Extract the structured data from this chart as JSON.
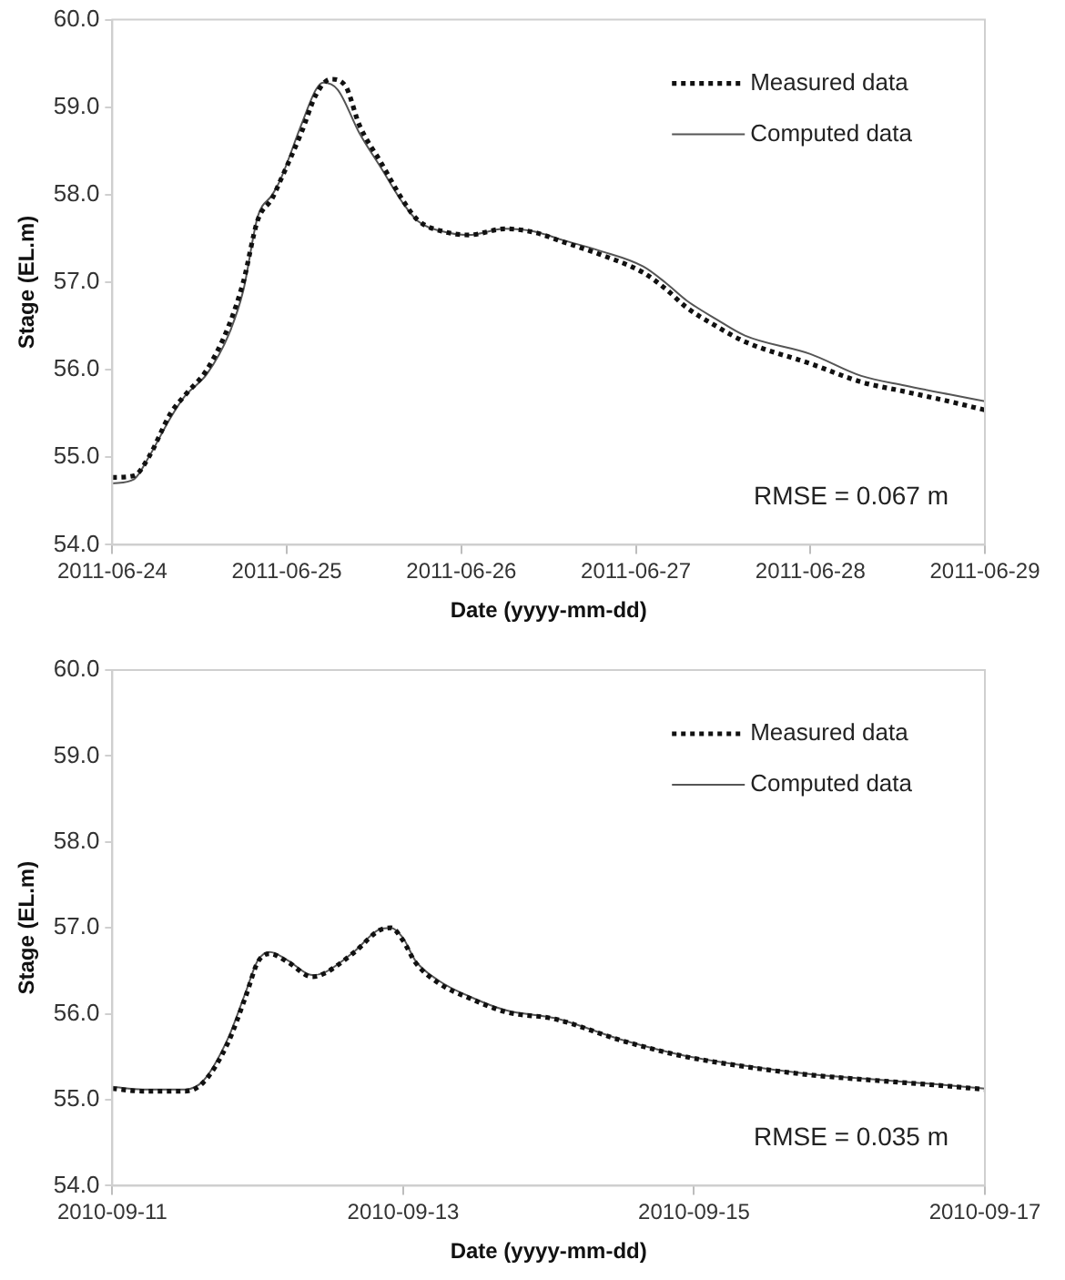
{
  "chart_data": [
    {
      "type": "line",
      "xlabel": "Date (yyyy-mm-dd)",
      "ylabel": "Stage (EL.m)",
      "xlim": [
        "2011-06-24",
        "2011-06-29"
      ],
      "xticks": [
        "2011-06-24",
        "2011-06-25",
        "2011-06-26",
        "2011-06-27",
        "2011-06-28",
        "2011-06-29"
      ],
      "ylim": [
        54,
        60
      ],
      "yticks": [
        {
          "value": 54,
          "label": "54.0"
        },
        {
          "value": 55,
          "label": "55.0"
        },
        {
          "value": 56,
          "label": "56.0"
        },
        {
          "value": 57,
          "label": "57.0"
        },
        {
          "value": 58,
          "label": "58.0"
        },
        {
          "value": 59,
          "label": "59.0"
        },
        {
          "value": 60,
          "label": "60.0"
        }
      ],
      "grid": false,
      "legend": "top right",
      "marker": "none",
      "annotations": [
        "RMSE = 0.067 m"
      ],
      "series": [
        {
          "name": "Measured data",
          "color": "#111111",
          "line_style": "dotted",
          "x": [
            "2011-06-24T00:00",
            "2011-06-24T03:00",
            "2011-06-24T05:00",
            "2011-06-24T08:00",
            "2011-06-24T10:00",
            "2011-06-24T13:00",
            "2011-06-24T16:00",
            "2011-06-24T18:00",
            "2011-06-24T20:00",
            "2011-06-24T22:00",
            "2011-06-24T23:00",
            "2011-06-25T02:00",
            "2011-06-25T04:00",
            "2011-06-25T06:00",
            "2011-06-25T08:00",
            "2011-06-25T10:00",
            "2011-06-25T13:00",
            "2011-06-25T16:00",
            "2011-06-25T18:00",
            "2011-06-25T22:00",
            "2011-06-26T01:00",
            "2011-06-26T06:00",
            "2011-06-26T10:00",
            "2011-06-26T14:00",
            "2011-06-26T19:00",
            "2011-06-27T01:00",
            "2011-06-27T04:00",
            "2011-06-27T07:00",
            "2011-06-27T11:00",
            "2011-06-27T15:00",
            "2011-06-28T00:00",
            "2011-06-28T07:00",
            "2011-06-28T13:00",
            "2011-06-28T19:00",
            "2011-06-29T00:00"
          ],
          "values": [
            54.77,
            54.79,
            55.0,
            55.5,
            55.71,
            56.0,
            56.5,
            57.0,
            57.71,
            57.96,
            58.14,
            58.71,
            59.14,
            59.32,
            59.25,
            58.79,
            58.36,
            57.93,
            57.71,
            57.57,
            57.54,
            57.61,
            57.57,
            57.46,
            57.32,
            57.11,
            56.93,
            56.71,
            56.5,
            56.32,
            56.07,
            55.86,
            55.75,
            55.64,
            55.54
          ]
        },
        {
          "name": "Computed data",
          "color": "#555555",
          "line_style": "solid",
          "x": [
            "2011-06-24T00:00",
            "2011-06-24T03:00",
            "2011-06-24T05:00",
            "2011-06-24T08:00",
            "2011-06-24T10:00",
            "2011-06-24T13:00",
            "2011-06-24T16:00",
            "2011-06-24T18:00",
            "2011-06-24T20:00",
            "2011-06-24T22:00",
            "2011-06-24T23:00",
            "2011-06-25T02:00",
            "2011-06-25T04:00",
            "2011-06-25T05:00",
            "2011-06-25T07:00",
            "2011-06-25T10:00",
            "2011-06-25T13:00",
            "2011-06-25T16:00",
            "2011-06-25T18:00",
            "2011-06-25T22:00",
            "2011-06-26T01:00",
            "2011-06-26T06:00",
            "2011-06-26T10:00",
            "2011-06-26T14:00",
            "2011-06-26T19:00",
            "2011-06-27T01:00",
            "2011-06-27T04:00",
            "2011-06-27T07:00",
            "2011-06-27T11:00",
            "2011-06-27T15:00",
            "2011-06-28T00:00",
            "2011-06-28T07:00",
            "2011-06-28T13:00",
            "2011-06-28T19:00",
            "2011-06-29T00:00"
          ],
          "values": [
            54.7,
            54.75,
            55.0,
            55.45,
            55.7,
            55.95,
            56.4,
            56.9,
            57.75,
            58.0,
            58.15,
            58.8,
            59.2,
            59.28,
            59.2,
            58.7,
            58.3,
            57.9,
            57.7,
            57.57,
            57.54,
            57.61,
            57.58,
            57.48,
            57.36,
            57.18,
            57.0,
            56.79,
            56.58,
            56.39,
            56.18,
            55.93,
            55.82,
            55.72,
            55.64
          ]
        }
      ]
    },
    {
      "type": "line",
      "xlabel": "Date (yyyy-mm-dd)",
      "ylabel": "Stage (EL.m)",
      "xlim": [
        "2010-09-11",
        "2010-09-17"
      ],
      "xticks": [
        "2010-09-11",
        "2010-09-13",
        "2010-09-15",
        "2010-09-17"
      ],
      "ylim": [
        54,
        60
      ],
      "yticks": [
        {
          "value": 54,
          "label": "54.0"
        },
        {
          "value": 55,
          "label": "55.0"
        },
        {
          "value": 56,
          "label": "56.0"
        },
        {
          "value": 57,
          "label": "57.0"
        },
        {
          "value": 58,
          "label": "58.0"
        },
        {
          "value": 59,
          "label": "59.0"
        },
        {
          "value": 60,
          "label": "60.0"
        }
      ],
      "grid": false,
      "legend": "top right",
      "marker": "none",
      "annotations": [
        "RMSE = 0.035 m"
      ],
      "series": [
        {
          "name": "Measured data",
          "color": "#111111",
          "line_style": "dotted",
          "x": [
            "2010-09-11T00:00",
            "2010-09-11T05:00",
            "2010-09-11T12:00",
            "2010-09-11T15:00",
            "2010-09-11T19:00",
            "2010-09-11T22:00",
            "2010-09-12T00:00",
            "2010-09-12T02:00",
            "2010-09-12T05:00",
            "2010-09-12T09:00",
            "2010-09-12T11:00",
            "2010-09-12T16:00",
            "2010-09-12T20:00",
            "2010-09-12T22:00",
            "2010-09-13T00:00",
            "2010-09-13T02:00",
            "2010-09-13T06:00",
            "2010-09-13T11:00",
            "2010-09-13T17:00",
            "2010-09-14T01:00",
            "2010-09-14T12:00",
            "2010-09-14T22:00",
            "2010-09-15T08:00",
            "2010-09-15T19:00",
            "2010-09-16T05:00",
            "2010-09-16T16:00",
            "2010-09-17T00:00"
          ],
          "values": [
            55.13,
            55.1,
            55.1,
            55.2,
            55.65,
            56.2,
            56.6,
            56.7,
            56.6,
            56.43,
            56.47,
            56.72,
            56.97,
            57.0,
            56.85,
            56.6,
            56.35,
            56.18,
            56.02,
            55.94,
            55.69,
            55.51,
            55.39,
            55.29,
            55.23,
            55.17,
            55.12
          ]
        },
        {
          "name": "Computed data",
          "color": "#555555",
          "line_style": "solid",
          "x": [
            "2010-09-11T00:00",
            "2010-09-11T05:00",
            "2010-09-11T12:00",
            "2010-09-11T15:00",
            "2010-09-11T19:00",
            "2010-09-11T22:00",
            "2010-09-12T00:00",
            "2010-09-12T02:00",
            "2010-09-12T05:00",
            "2010-09-12T09:00",
            "2010-09-12T11:00",
            "2010-09-12T16:00",
            "2010-09-12T20:00",
            "2010-09-12T22:00",
            "2010-09-13T00:00",
            "2010-09-13T02:00",
            "2010-09-13T06:00",
            "2010-09-13T11:00",
            "2010-09-13T17:00",
            "2010-09-14T01:00",
            "2010-09-14T12:00",
            "2010-09-14T22:00",
            "2010-09-15T08:00",
            "2010-09-15T19:00",
            "2010-09-16T05:00",
            "2010-09-16T16:00",
            "2010-09-17T00:00"
          ],
          "values": [
            55.15,
            55.12,
            55.12,
            55.22,
            55.7,
            56.25,
            56.62,
            56.72,
            56.62,
            56.45,
            56.48,
            56.73,
            56.98,
            57.0,
            56.88,
            56.62,
            56.38,
            56.2,
            56.04,
            55.95,
            55.7,
            55.52,
            55.4,
            55.3,
            55.24,
            55.18,
            55.13
          ]
        }
      ]
    }
  ]
}
